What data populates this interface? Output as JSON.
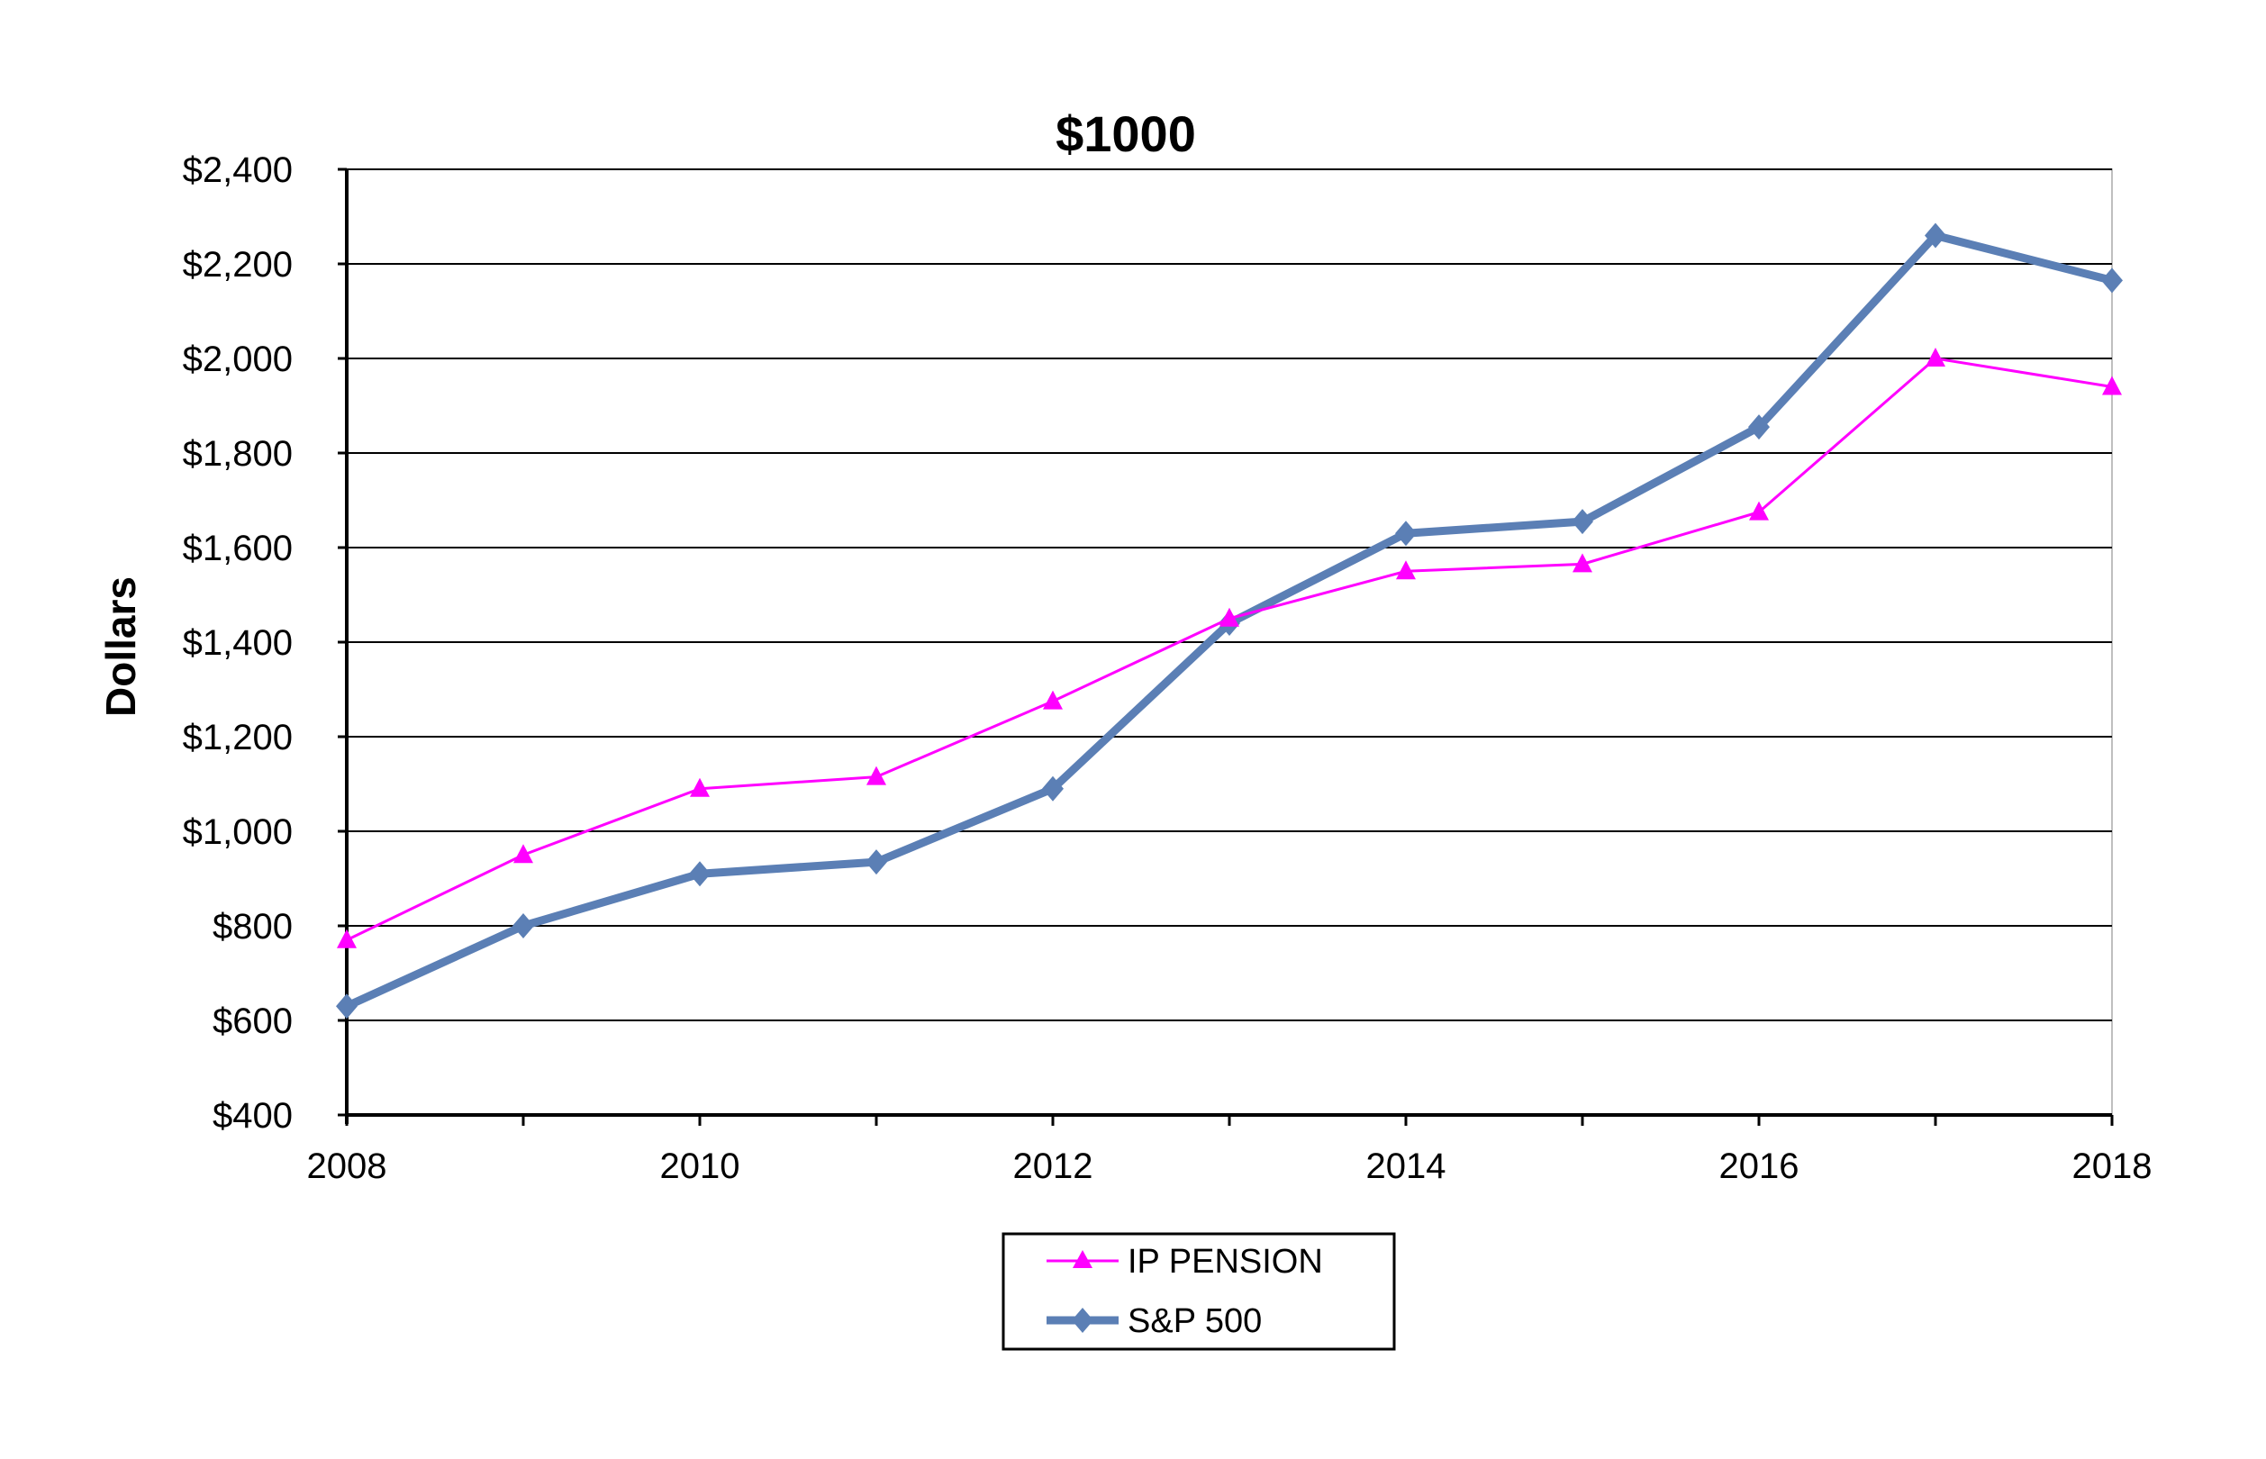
{
  "chart_data": {
    "type": "line",
    "title": "$1000",
    "xlabel": "",
    "ylabel": "Dollars",
    "x": [
      2008,
      2009,
      2010,
      2011,
      2012,
      2013,
      2014,
      2015,
      2016,
      2017,
      2018
    ],
    "x_tick_labels": [
      "2008",
      "2010",
      "2012",
      "2014",
      "2016",
      "2018"
    ],
    "y_tick_labels": [
      "$400",
      "$600",
      "$800",
      "$1,000",
      "$1,200",
      "$1,400",
      "$1,600",
      "$1,800",
      "$2,000",
      "$2,200",
      "$2,400"
    ],
    "xlim": [
      2008,
      2018
    ],
    "ylim": [
      400,
      2400
    ],
    "grid": true,
    "legend_position": "bottom",
    "series": [
      {
        "name": "IP PENSION",
        "color": "#FF00FF",
        "marker": "triangle",
        "values": [
          770,
          950,
          1090,
          1115,
          1275,
          1450,
          1550,
          1565,
          1675,
          2000,
          1940
        ]
      },
      {
        "name": "S&P 500",
        "color": "#5B7FB5",
        "marker": "diamond",
        "values": [
          630,
          800,
          910,
          935,
          1090,
          1440,
          1630,
          1655,
          1855,
          2260,
          2165
        ]
      }
    ]
  }
}
